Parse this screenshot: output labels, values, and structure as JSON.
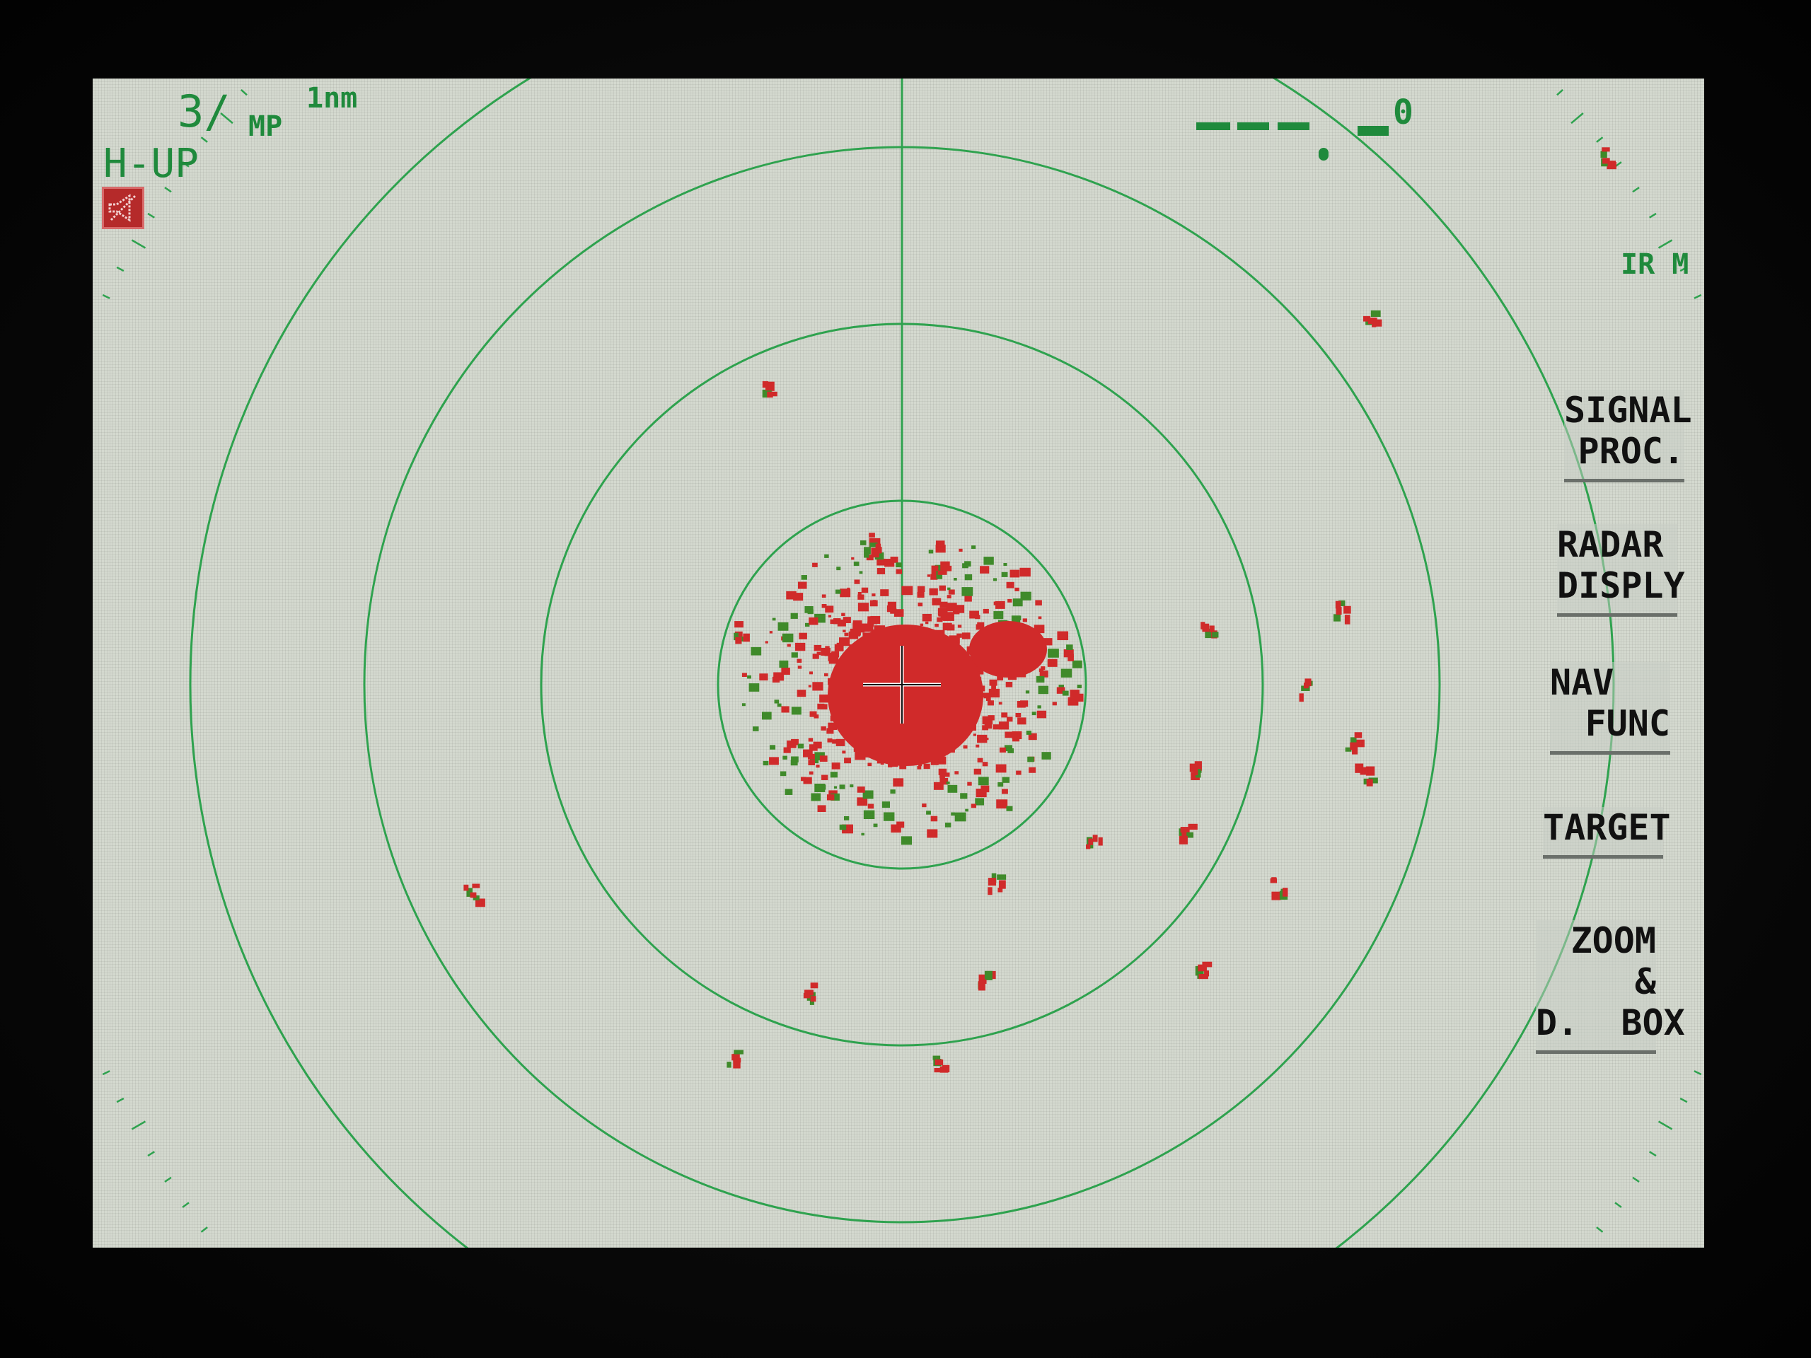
{
  "status": {
    "range_index": "3/",
    "pulse": "MP",
    "range": "1nm",
    "orientation": "H-UP",
    "heading_readout": "0",
    "ir_label": "IR M"
  },
  "icons": {
    "mode_icon": "alarm-speaker-icon"
  },
  "menu": [
    {
      "line1": "SIGNAL",
      "line2": "PROC."
    },
    {
      "line1": "RADAR",
      "line2": "DISPLY"
    },
    {
      "line1": "NAV",
      "line2": "FUNC"
    },
    {
      "line1": "TARGET",
      "line2": ""
    },
    {
      "line1": "ZOOM &",
      "line2": "D.  BOX"
    }
  ],
  "colors": {
    "background": "#d4d9cf",
    "rings": "#2ea24e",
    "echo": "#d02a2a",
    "echo_edge": "#3f8a2a",
    "text": "#1f8a3c"
  }
}
